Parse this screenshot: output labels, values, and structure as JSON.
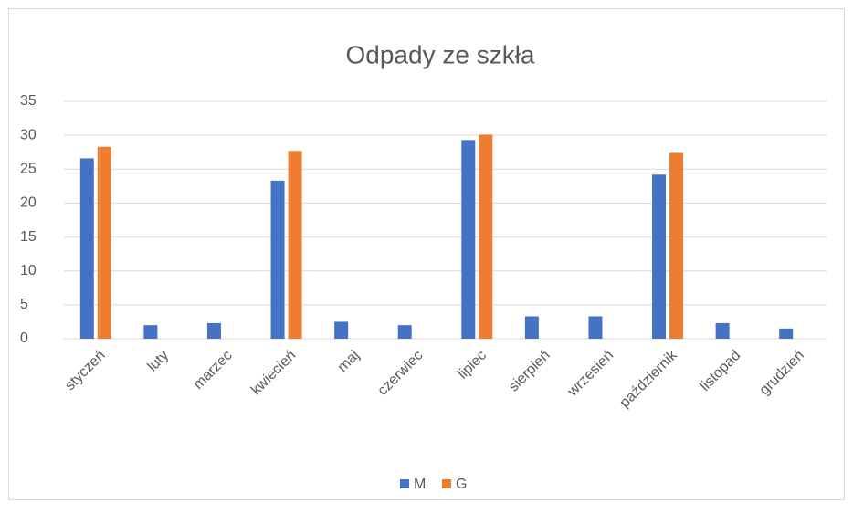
{
  "chart_data": {
    "type": "bar",
    "title": "Odpady ze szkła",
    "categories": [
      "styczeń",
      "luty",
      "marzec",
      "kwiecień",
      "maj",
      "czerwiec",
      "lipiec",
      "sierpień",
      "wrzesień",
      "październik",
      "listopad",
      "grudzień"
    ],
    "series": [
      {
        "name": "M",
        "color": "#4472c4",
        "values": [
          26.6,
          2.0,
          2.3,
          23.3,
          2.5,
          2.0,
          29.3,
          3.3,
          3.3,
          24.2,
          2.3,
          1.5
        ]
      },
      {
        "name": "G",
        "color": "#ed7d31",
        "values": [
          28.3,
          null,
          null,
          27.7,
          null,
          null,
          30.1,
          null,
          null,
          27.4,
          null,
          null
        ]
      }
    ],
    "ylim": [
      0,
      35
    ],
    "yticks": [
      0,
      5,
      10,
      15,
      20,
      25,
      30,
      35
    ],
    "grid": true,
    "legend": "bottom"
  }
}
